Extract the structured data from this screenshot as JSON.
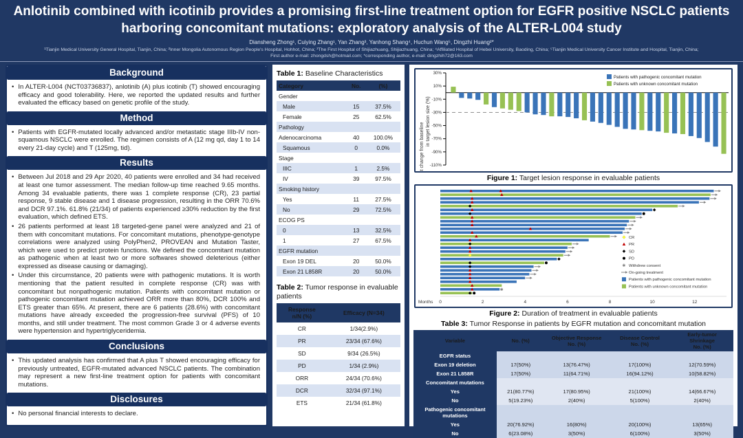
{
  "header": {
    "title_line1": "Anlotinib combined with icotinib provides a promising first-line treatment option for EGFR positive NSCLC patients",
    "title_line2": "harboring concomitant mutations: exploratory analysis of the ALTER-L004 study",
    "authors": "Diansheng Zhong¹, Cuiying Zhang¹, Yan Zhang³, Yanhong Shang⁴, Huchun Wang⁵, Dingzhi Huang²*",
    "affiliations": "¹Tianjin Medical University General Hospital, Tianjin, China; ²Inner Mongolia Autonomous Region People's Hospital, Hohhot, China; ³The First Hospital of Shijiazhuang, Shijiazhuang, China; ⁴Affiliated Hospital of Hebei University, Baoding, China; ⁵Tianjin Medical University Cancer Institute and Hospital, Tianjin, China;",
    "contact": "First author e-mail: zhongdsh@hotmail.com; *corresponding author, e-mail: dingzhih72@163.com"
  },
  "sections": {
    "background": {
      "title": "Background",
      "bullets": [
        "In ALTER-L004 (NCT03736837), anlotinib (A) plus icotinib (T) showed encouraging efficacy and good tolerability. Here, we reported the updated results and further evaluated the efficacy based on genetic profile of the study."
      ]
    },
    "method": {
      "title": "Method",
      "bullets": [
        "Patients with EGFR-mutated locally advanced and/or metastatic stage IIIb-IV non-squamous NSCLC were enrolled. The regimen consists of A (12 mg qd, day 1 to 14 every 21-day cycle) and T (125mg, tid)."
      ]
    },
    "results": {
      "title": "Results",
      "bullets": [
        "Between Jul 2018 and 29 Apr 2020, 40 patients were enrolled and 34 had received at least one tumor assessment. The median follow-up time reached 9.65 months. Among 34 evaluable patients, there was 1 complete response (CR), 23 partial response, 9 stable disease and 1 disease progression, resulting in the ORR 70.6% and DCR 97.1%. 61.8% (21/34) of patients experienced ≥30% reduction by the first evaluation, which defined ETS.",
        "26 patients performed at least 18 targeted-gene panel were analyzed and 21 of them with concomitant mutations. For concomitant mutations, phenotype-genotype correlations were analyzed using PolyPhen2, PROVEAN and Mutation Taster, which were used to predict protein functions. We defined the concomitant mutation as pathogenic when at least two or more softwares showed deleterious (either expressed as disease causing or damaging).",
        "Under this circumstance, 20 patients were with pathogenic mutations. It is worth mentioning that the patient resulted in complete response (CR) was with concomitant but nonpathogenic mutation. Patients with concomitant mutation or pathogenic concomitant mutation achieved ORR more than 80%, DCR 100% and ETS greater than 65%. At present, there are 6 patients (28.6%) with concomitant mutations have already exceeded the progression-free survival (PFS) of 10 months, and still under treatment. The most common Grade 3 or 4 adverse events were hypertension and hypertriglyceridemia."
      ]
    },
    "conclusions": {
      "title": "Conclusions",
      "bullets": [
        "This updated analysis has confirmed that A plus T showed encouraging efficacy for previously untreated, EGFR-mutated advanced NSCLC patients. The combination may represent a new first-line treatment option for patients with concomitant mutations."
      ]
    },
    "disclosures": {
      "title": "Disclosures",
      "bullets": [
        "No personal financial interests to declare."
      ]
    }
  },
  "tables": {
    "table1": {
      "title_label": "Table 1:",
      "title_text": " Baseline Characteristics",
      "columns": [
        "Category",
        "No.",
        "(%)"
      ],
      "rows": [
        {
          "label": "Gender",
          "group": true
        },
        {
          "label": "Male",
          "no": "15",
          "pct": "37.5%",
          "indent": true
        },
        {
          "label": "Female",
          "no": "25",
          "pct": "62.5%",
          "indent": true
        },
        {
          "label": "Pathology",
          "group": true
        },
        {
          "label": "Adenocarcinoma",
          "no": "40",
          "pct": "100.0%"
        },
        {
          "label": "Squamous",
          "no": "0",
          "pct": "0.0%",
          "indent": true
        },
        {
          "label": "Stage",
          "group": true
        },
        {
          "label": "IIIC",
          "no": "1",
          "pct": "2.5%",
          "indent": true
        },
        {
          "label": "IV",
          "no": "39",
          "pct": "97.5%",
          "indent": true
        },
        {
          "label": "Smoking history",
          "group": true
        },
        {
          "label": "Yes",
          "no": "11",
          "pct": "27.5%",
          "indent": true
        },
        {
          "label": "No",
          "no": "29",
          "pct": "72.5%",
          "indent": true
        },
        {
          "label": "ECOG PS",
          "group": true
        },
        {
          "label": "0",
          "no": "13",
          "pct": "32.5%",
          "indent": true
        },
        {
          "label": "1",
          "no": "27",
          "pct": "67.5%",
          "indent": true
        },
        {
          "label": "EGFR mutation",
          "group": true
        },
        {
          "label": "Exon 19 DEL",
          "no": "20",
          "pct": "50.0%",
          "indent": true
        },
        {
          "label": "Exon 21 L858R",
          "no": "20",
          "pct": "50.0%",
          "indent": true
        }
      ]
    },
    "table2": {
      "title_label": "Table 2:",
      "title_text": " Tumor response in evaluable patients",
      "columns": [
        "Response\nn/N (%)",
        "Efficacy  (N=34)"
      ],
      "rows": [
        [
          "CR",
          "1/34(2.9%)"
        ],
        [
          "PR",
          "23/34 (67.6%)"
        ],
        [
          "SD",
          "9/34 (26.5%)"
        ],
        [
          "PD",
          "1/34 (2.9%)"
        ],
        [
          "ORR",
          "24/34 (70.6%)"
        ],
        [
          "DCR",
          "32/34 (97.1%)"
        ],
        [
          "ETS",
          "21/34 (61.8%)"
        ]
      ]
    },
    "table3": {
      "title_label": "Table 3:",
      "title_text": " Tumor Response in patients by EGFR mutation and concomitant mutation",
      "columns": [
        "Variable",
        "No. (%)",
        "Objective Response\nNo. (%)",
        "Disease Control\nNo. (%)",
        "Early-tumor\nShrinkage\nNo. (%)"
      ],
      "rows": [
        {
          "label": "EGFR status",
          "group": true,
          "band": 0,
          "values": [
            "",
            "",
            "",
            ""
          ]
        },
        {
          "label": "Exon 19 deletion",
          "band": 0,
          "values": [
            "17(50%)",
            "13(76.47%)",
            "17(100%)",
            "12(70.59%)"
          ]
        },
        {
          "label": "Exon 21 L858R",
          "band": 0,
          "values": [
            "17(50%)",
            "11(64.71%)",
            "16(94.12%)",
            "10(58.82%)"
          ]
        },
        {
          "label": "Concomitant mutations",
          "group": true,
          "band": 1,
          "values": [
            "",
            "",
            "",
            ""
          ]
        },
        {
          "label": "Yes",
          "band": 1,
          "values": [
            "21(80.77%)",
            "17(80.95%)",
            "21(100%)",
            "14(66.67%)"
          ]
        },
        {
          "label": "No",
          "band": 1,
          "values": [
            "5(19.23%)",
            "2(40%)",
            "5(100%)",
            "2(40%)"
          ]
        },
        {
          "label": "Pathogenic concomitant mutations",
          "group": true,
          "band": 0,
          "values": [
            "",
            "",
            "",
            ""
          ]
        },
        {
          "label": "Yes",
          "band": 0,
          "values": [
            "20(76.92%)",
            "16(80%)",
            "20(100%)",
            "13(65%)"
          ]
        },
        {
          "label": "No",
          "band": 0,
          "values": [
            "6(23.08%)",
            "3(50%)",
            "6(100%)",
            "3(50%)"
          ]
        }
      ]
    }
  },
  "figures": {
    "figure1_caption_label": "Figure 1:",
    "figure1_caption_text": " Target lesion response in evaluable patients",
    "figure2_caption_label": "Figure 2:",
    "figure2_caption_text": " Duration of treatment in evaluable patients"
  },
  "chart_data": [
    {
      "type": "bar",
      "name": "waterfall-target-lesion-response",
      "title": "Figure 1: Target lesion response in evaluable patients",
      "ylabel": "Best change from baseline in target lesion size (%)",
      "ylabel_line1": "Best change from baseline",
      "ylabel_line2": "in target lesion size  (%)",
      "yticks": [
        30,
        10,
        -10,
        -30,
        -50,
        -70,
        -90,
        -110
      ],
      "ylim": [
        -110,
        30
      ],
      "reference_line": -30,
      "grid": false,
      "legend_position": "top-right",
      "legend": [
        {
          "label": "Patients with pathogenic concomitant mutation",
          "color": "#3a74b8",
          "key": "pathogenic"
        },
        {
          "label": "Patients with unknown concomitant mutation",
          "color": "#97c154",
          "key": "unknown"
        }
      ],
      "series": [
        {
          "name": "best_change_pct",
          "values": [
            9,
            -8,
            -9,
            -11,
            -18,
            -22,
            -24,
            -26,
            -28,
            -30,
            -33,
            -34,
            -36,
            -36,
            -37,
            -39,
            -42,
            -44,
            -46,
            -49,
            -52,
            -55,
            -56,
            -57,
            -58,
            -59,
            -61,
            -62,
            -63,
            -66,
            -69,
            -75,
            -82,
            -93
          ]
        }
      ],
      "bar_groups": [
        "unknown",
        "pathogenic",
        "pathogenic",
        "pathogenic",
        "unknown",
        "pathogenic",
        "unknown",
        "unknown",
        "unknown",
        "pathogenic",
        "pathogenic",
        "pathogenic",
        "unknown",
        "pathogenic",
        "pathogenic",
        "pathogenic",
        "unknown",
        "pathogenic",
        "pathogenic",
        "pathogenic",
        "pathogenic",
        "pathogenic",
        "pathogenic",
        "unknown",
        "pathogenic",
        "pathogenic",
        "unknown",
        "pathogenic",
        "unknown",
        "pathogenic",
        "pathogenic",
        "pathogenic",
        "pathogenic",
        "unknown"
      ]
    },
    {
      "type": "bar",
      "orientation": "horizontal",
      "name": "swimmer-duration-of-treatment",
      "title": "Figure 2: Duration of treatment in evaluable patients",
      "xlabel": "Months",
      "xticks": [
        0,
        2,
        4,
        6,
        8,
        10,
        12
      ],
      "xlim": [
        0,
        13.5
      ],
      "grid": false,
      "legend_position": "right",
      "legend": [
        {
          "key": "CR",
          "label": "CR"
        },
        {
          "key": "PR",
          "label": "PR"
        },
        {
          "key": "SD",
          "label": "SD"
        },
        {
          "key": "PD",
          "label": "PD"
        },
        {
          "key": "withdrew",
          "label": "Withdrew consent"
        },
        {
          "key": "ongoing",
          "label": "On-going treatment"
        },
        {
          "key": "swatch-blue",
          "label": "Patients with pathogenic concomitant mutation"
        },
        {
          "key": "swatch-green",
          "label": "Patients with unknown concomitant mutation"
        }
      ],
      "marker_colors": {
        "CR": "#ffff33",
        "PR": "#c00000",
        "SD": "#000000",
        "PD": "#000000",
        "withdrew": "#808080",
        "ongoing": "#808080"
      },
      "bar_colors": {
        "pathogenic": "#3a74b8",
        "unknown": "#97c154"
      },
      "bars": [
        {
          "months": 12.9,
          "group": "pathogenic",
          "end": "ongoing",
          "markers": [
            {
              "type": "PR",
              "month": 1.45
            },
            {
              "type": "PR",
              "month": 2.85
            }
          ]
        },
        {
          "months": 12.75,
          "group": "unknown",
          "end": "ongoing",
          "markers": [
            {
              "type": "PR",
              "month": 2.9
            }
          ]
        },
        {
          "months": 12.7,
          "group": "pathogenic",
          "end": "ongoing",
          "markers": [
            {
              "type": "PR",
              "month": 1.5
            }
          ]
        },
        {
          "months": 12.2,
          "group": "pathogenic",
          "end": "ongoing",
          "markers": [
            {
              "type": "PR",
              "month": 1.5
            }
          ]
        },
        {
          "months": 11.2,
          "group": "unknown",
          "end": "ongoing",
          "markers": [
            {
              "type": "SD",
              "month": 1.4
            }
          ]
        },
        {
          "months": 10.0,
          "group": "pathogenic",
          "end": "SD",
          "markers": [
            {
              "type": "PR",
              "month": 1.5
            }
          ]
        },
        {
          "months": 9.5,
          "group": "pathogenic",
          "end": "PD",
          "markers": [
            {
              "type": "SD",
              "month": 1.4
            }
          ]
        },
        {
          "months": 9.2,
          "group": "unknown",
          "end": "ongoing",
          "markers": [
            {
              "type": "PR",
              "month": 1.5
            }
          ]
        },
        {
          "months": 8.9,
          "group": "pathogenic",
          "end": "ongoing",
          "markers": [
            {
              "type": "PR",
              "month": 1.5
            }
          ]
        },
        {
          "months": 8.8,
          "group": "pathogenic",
          "end": "ongoing",
          "markers": [
            {
              "type": "PR",
              "month": 1.5
            }
          ]
        },
        {
          "months": 8.7,
          "group": "pathogenic",
          "end": "ongoing",
          "markers": [
            {
              "type": "PR",
              "month": 4.25
            }
          ]
        },
        {
          "months": 8.6,
          "group": "pathogenic",
          "end": "ongoing",
          "markers": [
            {
              "type": "PR",
              "month": 1.5
            }
          ]
        },
        {
          "months": 8.0,
          "group": "unknown",
          "end": "ongoing",
          "markers": [
            {
              "type": "PR",
              "month": 1.7
            }
          ]
        },
        {
          "months": 7.0,
          "group": "pathogenic",
          "end": "none",
          "markers": [
            {
              "type": "PR",
              "month": 1.4
            }
          ]
        },
        {
          "months": 6.2,
          "group": "unknown",
          "end": "ongoing",
          "markers": [
            {
              "type": "SD",
              "month": 1.4
            }
          ]
        },
        {
          "months": 6.0,
          "group": "pathogenic",
          "end": "ongoing",
          "markers": [
            {
              "type": "PR",
              "month": 1.4
            }
          ]
        },
        {
          "months": 5.9,
          "group": "pathogenic",
          "end": "ongoing",
          "markers": [
            {
              "type": "PR",
              "month": 1.4
            }
          ]
        },
        {
          "months": 5.8,
          "group": "unknown",
          "end": "ongoing",
          "markers": [
            {
              "type": "CR",
              "month": 1.4
            }
          ]
        },
        {
          "months": 5.5,
          "group": "pathogenic",
          "end": "SD",
          "markers": []
        },
        {
          "months": 4.9,
          "group": "unknown",
          "end": "PD",
          "markers": [
            {
              "type": "SD",
              "month": 1.4
            }
          ]
        },
        {
          "months": 4.4,
          "group": "pathogenic",
          "end": "ongoing",
          "markers": [
            {
              "type": "SD",
              "month": 1.4
            }
          ]
        },
        {
          "months": 4.3,
          "group": "pathogenic",
          "end": "ongoing",
          "markers": [
            {
              "type": "PR",
              "month": 1.4
            }
          ]
        },
        {
          "months": 4.2,
          "group": "pathogenic",
          "end": "ongoing",
          "markers": [
            {
              "type": "PR",
              "month": 1.4
            }
          ]
        },
        {
          "months": 4.0,
          "group": "pathogenic",
          "end": "ongoing",
          "markers": [
            {
              "type": "PR",
              "month": 1.4
            }
          ]
        },
        {
          "months": 3.6,
          "group": "pathogenic",
          "end": "none",
          "markers": [
            {
              "type": "PR",
              "month": 1.4
            }
          ]
        },
        {
          "months": 2.9,
          "group": "unknown",
          "end": "none",
          "markers": [
            {
              "type": "PR",
              "month": 1.5
            }
          ]
        },
        {
          "months": 2.8,
          "group": "pathogenic",
          "end": "withdrew",
          "markers": [
            {
              "type": "PR",
              "month": 1.5
            }
          ]
        },
        {
          "months": 1.5,
          "group": "unknown",
          "end": "PD",
          "markers": [
            {
              "type": "SD",
              "month": 1.4
            }
          ]
        }
      ]
    }
  ],
  "colors": {
    "poster_background": "#203864",
    "section_header": "#17305f",
    "table_header": "#1f3864",
    "row_shade": "#d9e2f2",
    "bar_blue": "#3a74b8",
    "bar_green": "#97c154",
    "marker_red": "#c00000",
    "marker_yellow": "#ffff33",
    "white": "#ffffff"
  }
}
